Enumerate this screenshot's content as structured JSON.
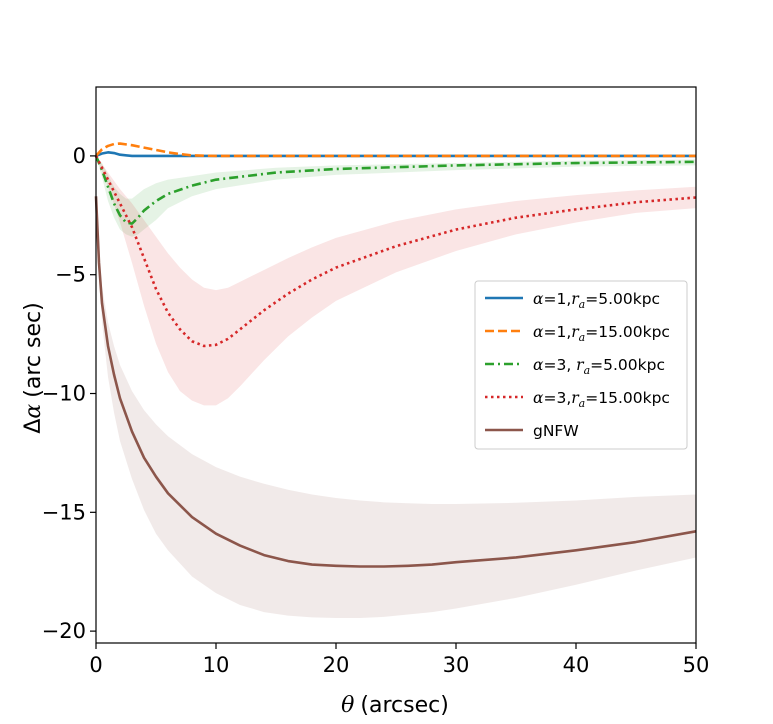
{
  "chart_data": {
    "type": "line",
    "title": "",
    "xlabel_symbol": "θ",
    "xlabel_unit": "(arcsec)",
    "ylabel_symbol": "α",
    "ylabel_prefix": "Δ",
    "ylabel_unit": "(arc sec)",
    "xlim": [
      0,
      50
    ],
    "ylim": [
      -20.5,
      2.9
    ],
    "xticks": [
      0,
      10,
      20,
      30,
      40,
      50
    ],
    "yticks": [
      0,
      -5,
      -10,
      -15,
      -20
    ],
    "xtick_labels": [
      "0",
      "10",
      "20",
      "30",
      "40",
      "50"
    ],
    "ytick_labels": [
      "0",
      "−5",
      "−10",
      "−15",
      "−20"
    ],
    "legend_position": "center-right",
    "series": [
      {
        "name": "α=1,r_a=5.00kpc",
        "legend_parts": [
          "α",
          "=1,",
          "r",
          "a",
          "=5.00kpc"
        ],
        "color": "#1f77b4",
        "style": "solid",
        "x": [
          0,
          0.5,
          1,
          1.5,
          2,
          3,
          4,
          6,
          10,
          20,
          30,
          40,
          50
        ],
        "y": [
          0,
          0.1,
          0.15,
          0.12,
          0.05,
          0.0,
          0.0,
          0.0,
          0.0,
          0.0,
          0.0,
          0.0,
          0.0
        ]
      },
      {
        "name": "α=1,r_a=15.00kpc",
        "legend_parts": [
          "α",
          "=1,",
          "r",
          "a",
          "=15.00kpc"
        ],
        "color": "#ff7f0e",
        "style": "dashed",
        "x": [
          0,
          0.5,
          1,
          1.5,
          2,
          3,
          4,
          5,
          6,
          7,
          8,
          10,
          20,
          30,
          40,
          50
        ],
        "y": [
          0,
          0.28,
          0.42,
          0.5,
          0.52,
          0.45,
          0.35,
          0.25,
          0.15,
          0.08,
          0.02,
          0.0,
          0.0,
          0.0,
          0.0,
          0.0
        ]
      },
      {
        "name": "α=3, r_a=5.00kpc",
        "legend_parts": [
          "α",
          "=3, ",
          "r",
          "a",
          "=5.00kpc"
        ],
        "color": "#2ca02c",
        "style": "dashdot",
        "x": [
          0,
          0.5,
          1,
          1.5,
          2,
          2.5,
          3,
          3.5,
          4,
          5,
          6,
          8,
          10,
          15,
          20,
          30,
          40,
          50
        ],
        "y": [
          0,
          -0.6,
          -1.3,
          -2.0,
          -2.5,
          -2.8,
          -2.85,
          -2.6,
          -2.3,
          -1.9,
          -1.6,
          -1.25,
          -1.0,
          -0.7,
          -0.55,
          -0.4,
          -0.3,
          -0.25
        ],
        "band_lower": [
          0,
          -0.9,
          -1.9,
          -2.6,
          -3.1,
          -3.3,
          -3.4,
          -3.3,
          -3.1,
          -2.7,
          -2.2,
          -1.7,
          -1.4,
          -1.0,
          -0.8,
          -0.6,
          -0.45,
          -0.4
        ],
        "band_upper": [
          0,
          -0.3,
          -0.8,
          -1.3,
          -1.6,
          -1.8,
          -1.8,
          -1.6,
          -1.4,
          -1.15,
          -1.0,
          -0.85,
          -0.7,
          -0.5,
          -0.4,
          -0.3,
          -0.2,
          -0.15
        ]
      },
      {
        "name": "α=3,r_a=15.00kpc",
        "legend_parts": [
          "α",
          "=3,",
          "r",
          "a",
          "=15.00kpc"
        ],
        "color": "#d62728",
        "style": "dotted",
        "x": [
          0,
          1,
          2,
          3,
          4,
          5,
          6,
          7,
          8,
          9,
          10,
          11,
          12,
          14,
          16,
          18,
          20,
          25,
          30,
          35,
          40,
          45,
          50
        ],
        "y": [
          0,
          -1.0,
          -2.0,
          -3.0,
          -4.3,
          -5.6,
          -6.6,
          -7.3,
          -7.8,
          -8.0,
          -7.95,
          -7.7,
          -7.3,
          -6.5,
          -5.8,
          -5.2,
          -4.7,
          -3.8,
          -3.1,
          -2.6,
          -2.25,
          -1.95,
          -1.75
        ],
        "band_lower": [
          0,
          -1.3,
          -2.8,
          -4.5,
          -6.3,
          -7.9,
          -9.1,
          -9.9,
          -10.3,
          -10.5,
          -10.5,
          -10.2,
          -9.7,
          -8.6,
          -7.6,
          -6.8,
          -6.1,
          -4.9,
          -4.0,
          -3.3,
          -2.8,
          -2.4,
          -2.2
        ],
        "band_upper": [
          0,
          -0.7,
          -1.4,
          -2.0,
          -2.7,
          -3.4,
          -4.1,
          -4.7,
          -5.2,
          -5.55,
          -5.65,
          -5.55,
          -5.3,
          -4.8,
          -4.3,
          -3.85,
          -3.45,
          -2.75,
          -2.25,
          -1.9,
          -1.65,
          -1.45,
          -1.3
        ]
      },
      {
        "name": "gNFW",
        "legend_parts": [
          "gNFW"
        ],
        "color": "#8c564b",
        "style": "solid",
        "x": [
          0,
          0.25,
          0.5,
          1,
          1.5,
          2,
          3,
          4,
          5,
          6,
          8,
          10,
          12,
          14,
          16,
          18,
          20,
          22,
          24,
          26,
          28,
          30,
          35,
          40,
          45,
          50
        ],
        "y": [
          -1.7,
          -4.5,
          -6.2,
          -8.0,
          -9.2,
          -10.2,
          -11.6,
          -12.7,
          -13.5,
          -14.2,
          -15.2,
          -15.9,
          -16.4,
          -16.8,
          -17.05,
          -17.2,
          -17.25,
          -17.28,
          -17.28,
          -17.25,
          -17.2,
          -17.1,
          -16.9,
          -16.6,
          -16.25,
          -15.8
        ],
        "band_lower": [
          -1.7,
          -4.8,
          -7.0,
          -9.3,
          -10.8,
          -12.0,
          -13.6,
          -14.9,
          -15.9,
          -16.6,
          -17.7,
          -18.4,
          -18.9,
          -19.2,
          -19.35,
          -19.42,
          -19.45,
          -19.45,
          -19.4,
          -19.3,
          -19.2,
          -19.05,
          -18.6,
          -18.05,
          -17.45,
          -16.9
        ],
        "band_upper": [
          -1.7,
          -4.0,
          -5.5,
          -7.0,
          -8.0,
          -8.8,
          -9.9,
          -10.7,
          -11.3,
          -11.8,
          -12.55,
          -13.1,
          -13.5,
          -13.8,
          -14.05,
          -14.25,
          -14.4,
          -14.5,
          -14.58,
          -14.62,
          -14.65,
          -14.65,
          -14.6,
          -14.5,
          -14.35,
          -14.25
        ]
      }
    ]
  }
}
